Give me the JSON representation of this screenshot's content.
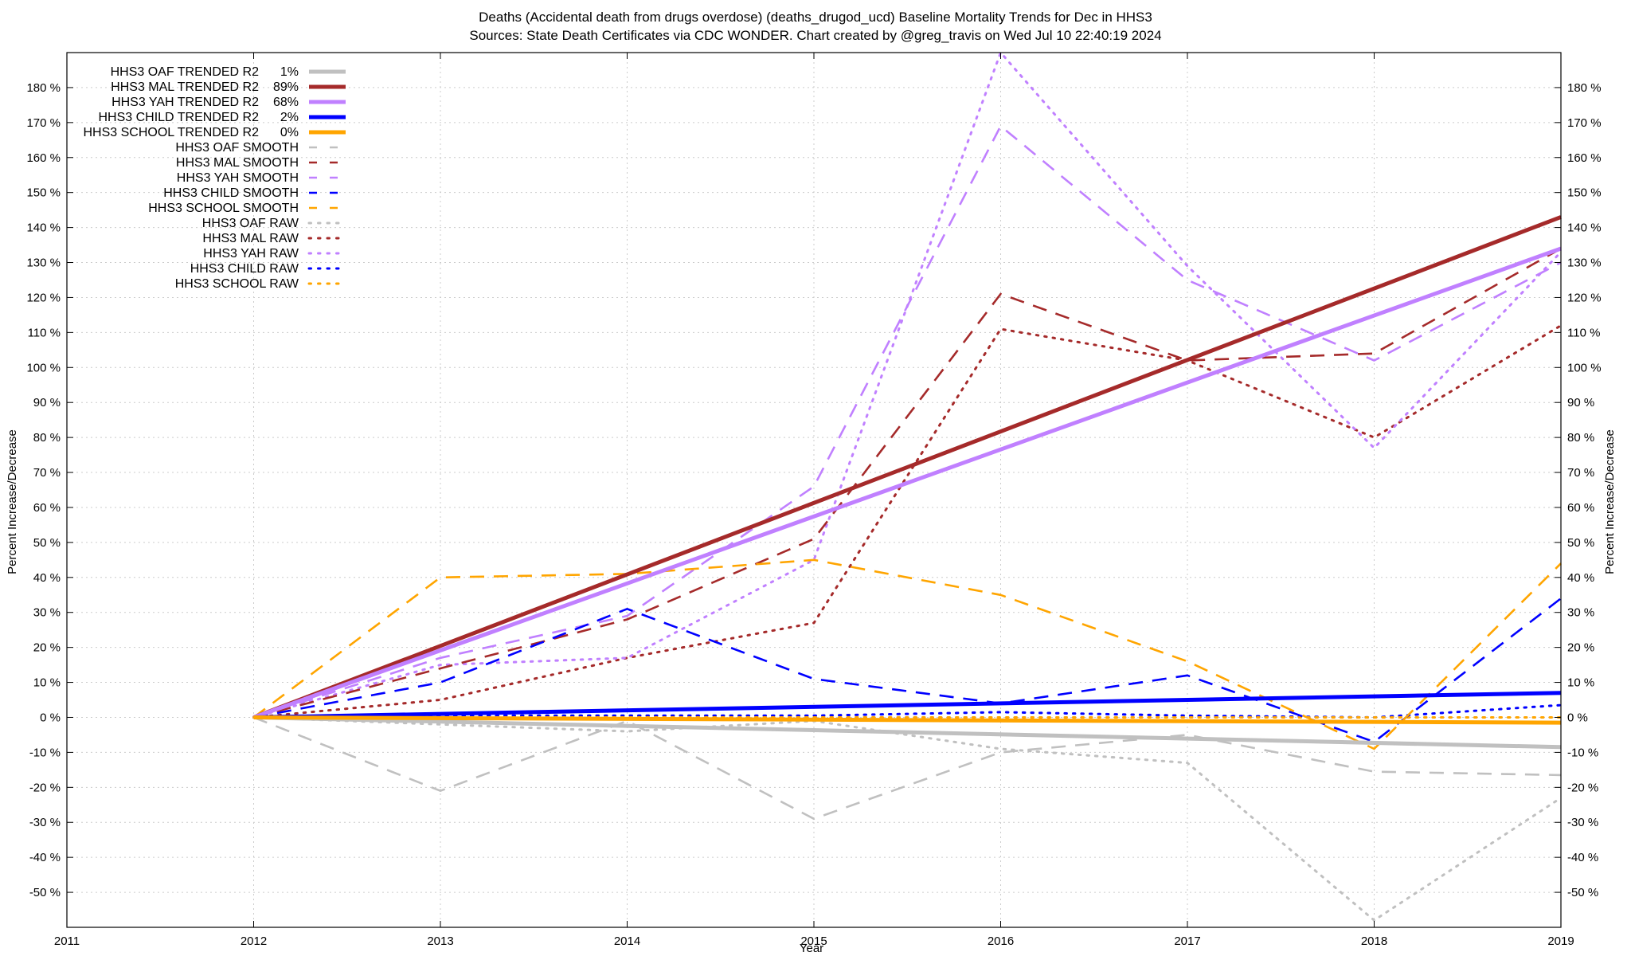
{
  "chart_data": {
    "type": "line",
    "title_lines": [
      "Deaths (Accidental death from drugs overdose) (deaths_drugod_ucd)  Baseline Mortality Trends for Dec in HHS3",
      "Sources: State Death Certificates via CDC WONDER.                Chart created by @greg_travis on Wed Jul 10 22:40:19 2024"
    ],
    "xlabel": "Year",
    "ylabel_left": "Percent Increase/Decrease",
    "ylabel_right": "Percent Increase/Decrease",
    "xlim": [
      2011,
      2019
    ],
    "ylim": [
      -60,
      190
    ],
    "x_ticks": [
      "2011",
      "2012",
      "2013",
      "2014",
      "2015",
      "2016",
      "2017",
      "2018",
      "2019"
    ],
    "y_ticks": [
      {
        "value": 180,
        "label": "180 %"
      },
      {
        "value": 170,
        "label": "170 %"
      },
      {
        "value": 160,
        "label": "160 %"
      },
      {
        "value": 150,
        "label": "150 %"
      },
      {
        "value": 140,
        "label": "140 %"
      },
      {
        "value": 130,
        "label": "130 %"
      },
      {
        "value": 120,
        "label": "120 %"
      },
      {
        "value": 110,
        "label": "110 %"
      },
      {
        "value": 100,
        "label": "100 %"
      },
      {
        "value": 90,
        "label": "90 %"
      },
      {
        "value": 80,
        "label": "80 %"
      },
      {
        "value": 70,
        "label": "70 %"
      },
      {
        "value": 60,
        "label": "60 %"
      },
      {
        "value": 50,
        "label": "50 %"
      },
      {
        "value": 40,
        "label": "40 %"
      },
      {
        "value": 30,
        "label": "30 %"
      },
      {
        "value": 20,
        "label": "20 %"
      },
      {
        "value": 10,
        "label": "10 %"
      },
      {
        "value": 0,
        "label": "0 %"
      },
      {
        "value": -10,
        "label": "-10 %"
      },
      {
        "value": -20,
        "label": "-20 %"
      },
      {
        "value": -30,
        "label": "-30 %"
      },
      {
        "value": -40,
        "label": "-40 %"
      },
      {
        "value": -50,
        "label": "-50 %"
      }
    ],
    "grid": true,
    "legend_position": "top-left",
    "series": [
      {
        "name": "HHS3 OAF TRENDED R2",
        "r2": "1%",
        "style": "solid",
        "color": "#c0c0c0",
        "x": [
          2012,
          2019
        ],
        "y": [
          0,
          -8.5
        ]
      },
      {
        "name": "HHS3 MAL TRENDED R2",
        "r2": "89%",
        "style": "solid",
        "color": "#a52a2a",
        "x": [
          2012,
          2019
        ],
        "y": [
          0,
          143
        ]
      },
      {
        "name": "HHS3 YAH TRENDED R2",
        "r2": "68%",
        "style": "solid",
        "color": "#c080ff",
        "x": [
          2012,
          2019
        ],
        "y": [
          0,
          134
        ]
      },
      {
        "name": "HHS3 CHILD TRENDED R2",
        "r2": "2%",
        "style": "solid",
        "color": "#0000ff",
        "x": [
          2012,
          2019
        ],
        "y": [
          0,
          7
        ]
      },
      {
        "name": "HHS3 SCHOOL TRENDED R2",
        "r2": "0%",
        "style": "solid",
        "color": "#ffa500",
        "x": [
          2012,
          2019
        ],
        "y": [
          0,
          -1.5
        ]
      },
      {
        "name": "HHS3 OAF SMOOTH",
        "r2": "",
        "style": "dashed",
        "color": "#c0c0c0",
        "x": [
          2012,
          2013,
          2014,
          2015,
          2016,
          2017,
          2018,
          2019
        ],
        "y": [
          0,
          -21,
          -1,
          -29,
          -10,
          -5,
          -15.5,
          -16.5
        ]
      },
      {
        "name": "HHS3 MAL SMOOTH",
        "r2": "",
        "style": "dashed",
        "color": "#a52a2a",
        "x": [
          2012,
          2013,
          2014,
          2015,
          2016,
          2017,
          2018,
          2019
        ],
        "y": [
          0,
          14,
          28,
          51,
          121,
          102,
          104,
          134
        ]
      },
      {
        "name": "HHS3 YAH SMOOTH",
        "r2": "",
        "style": "dashed",
        "color": "#c080ff",
        "x": [
          2012,
          2013,
          2014,
          2015,
          2016,
          2017,
          2018,
          2019
        ],
        "y": [
          0,
          17,
          29,
          66,
          169,
          125,
          102,
          130
        ]
      },
      {
        "name": "HHS3 CHILD SMOOTH",
        "r2": "",
        "style": "dashed",
        "color": "#0000ff",
        "x": [
          2012,
          2013,
          2014,
          2015,
          2016,
          2017,
          2018,
          2019
        ],
        "y": [
          0,
          10,
          31,
          11,
          4,
          12,
          -7,
          34
        ]
      },
      {
        "name": "HHS3 SCHOOL SMOOTH",
        "r2": "",
        "style": "dashed",
        "color": "#ffa500",
        "x": [
          2012,
          2013,
          2014,
          2015,
          2016,
          2017,
          2018,
          2019
        ],
        "y": [
          0,
          40,
          41,
          45,
          35,
          16,
          -9,
          44
        ]
      },
      {
        "name": "HHS3 OAF RAW",
        "r2": "",
        "style": "dotted",
        "color": "#c0c0c0",
        "x": [
          2012,
          2013,
          2014,
          2015,
          2016,
          2017,
          2018,
          2019
        ],
        "y": [
          0,
          -2,
          -4,
          -1,
          -9,
          -13,
          -58,
          -23
        ]
      },
      {
        "name": "HHS3 MAL RAW",
        "r2": "",
        "style": "dotted",
        "color": "#a52a2a",
        "x": [
          2012,
          2013,
          2014,
          2015,
          2016,
          2017,
          2018,
          2019
        ],
        "y": [
          0,
          5,
          17,
          27,
          111,
          102,
          80,
          112
        ]
      },
      {
        "name": "HHS3 YAH RAW",
        "r2": "",
        "style": "dotted",
        "color": "#c080ff",
        "x": [
          2012,
          2013,
          2014,
          2015,
          2016,
          2017,
          2018,
          2019
        ],
        "y": [
          0,
          15,
          17,
          45,
          190,
          129,
          77,
          133
        ]
      },
      {
        "name": "HHS3 CHILD RAW",
        "r2": "",
        "style": "dotted",
        "color": "#0000ff",
        "x": [
          2012,
          2013,
          2014,
          2015,
          2016,
          2017,
          2018,
          2019
        ],
        "y": [
          0,
          0.5,
          0.5,
          0.5,
          1.5,
          0.5,
          0,
          3.5
        ]
      },
      {
        "name": "HHS3 SCHOOL RAW",
        "r2": "",
        "style": "dotted",
        "color": "#ffa500",
        "x": [
          2012,
          2013,
          2014,
          2015,
          2016,
          2017,
          2018,
          2019
        ],
        "y": [
          0,
          0,
          0,
          0,
          0,
          0,
          0,
          0
        ]
      }
    ]
  }
}
